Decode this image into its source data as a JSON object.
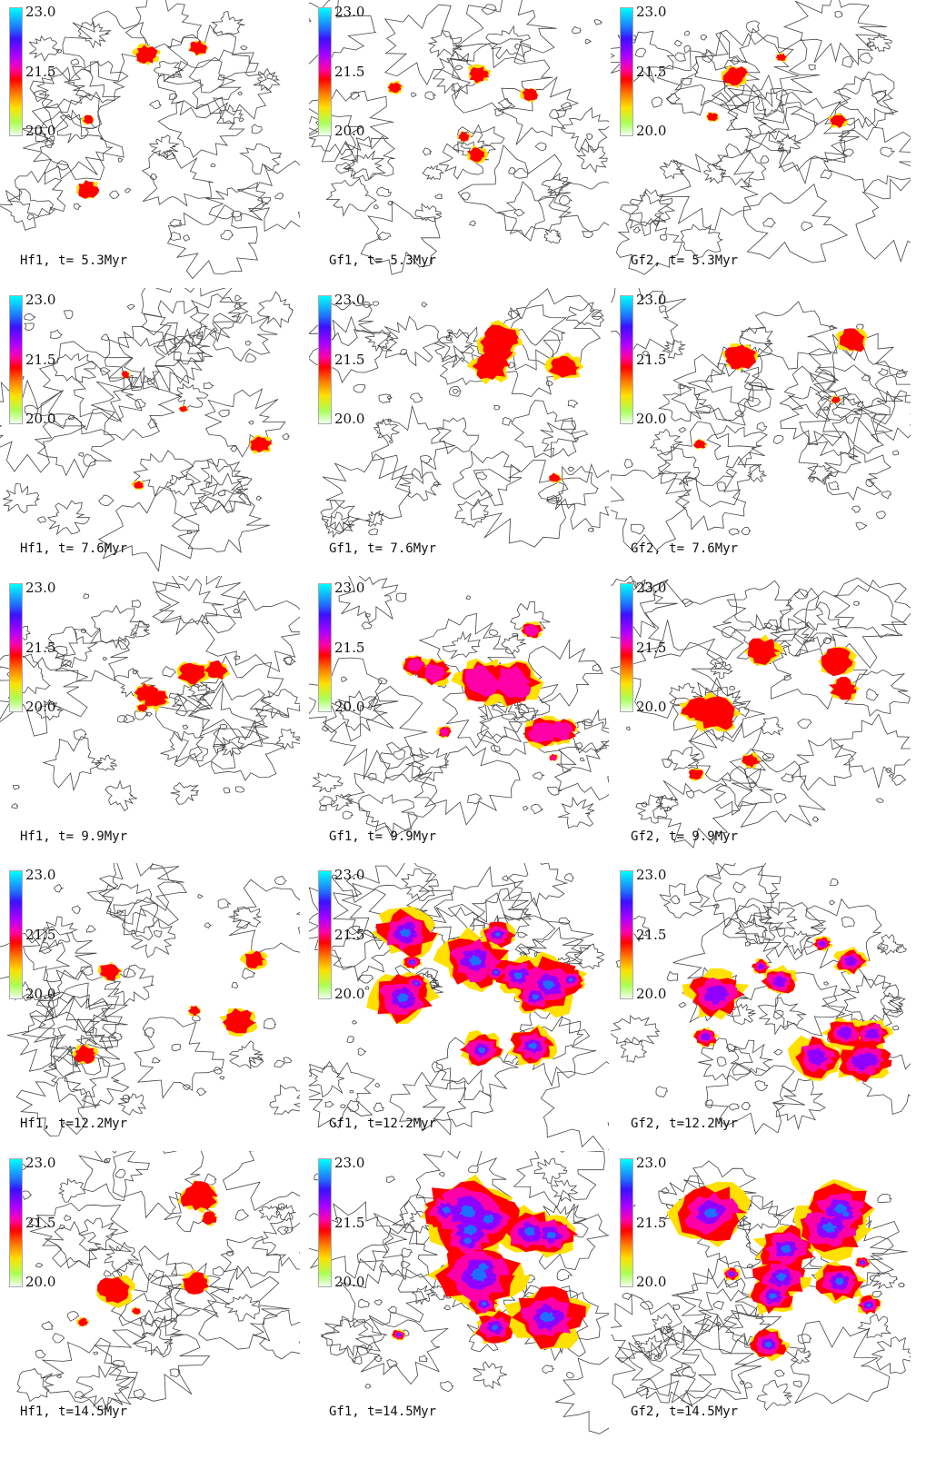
{
  "colorbar": {
    "max": "23.0",
    "mid": "21.5",
    "min": "20.0",
    "colors": [
      "#00ffff",
      "#1f6fff",
      "#3a10ff",
      "#b000ff",
      "#ff00a8",
      "#ff0000",
      "#ff7a00",
      "#ffe000",
      "#aaff55",
      "#f0fff0"
    ]
  },
  "panels": [
    {
      "caption": "Hf1, t= 5.3Myr",
      "density": 0.05
    },
    {
      "caption": "Gf1, t= 5.3Myr",
      "density": 0.13
    },
    {
      "caption": "Gf2, t= 5.3Myr",
      "density": 0.07
    },
    {
      "caption": "Hf1, t= 7.6Myr",
      "density": 0.1
    },
    {
      "caption": "Gf1, t= 7.6Myr",
      "density": 0.22
    },
    {
      "caption": "Gf2, t= 7.6Myr",
      "density": 0.15
    },
    {
      "caption": "Hf1, t= 9.9Myr",
      "density": 0.12
    },
    {
      "caption": "Gf1, t= 9.9Myr",
      "density": 0.45
    },
    {
      "caption": "Gf2, t= 9.9Myr",
      "density": 0.3
    },
    {
      "caption": "Hf1, t=12.2Myr",
      "density": 0.16
    },
    {
      "caption": "Gf1, t=12.2Myr",
      "density": 0.7
    },
    {
      "caption": "Gf2, t=12.2Myr",
      "density": 0.55
    },
    {
      "caption": "Hf1, t=14.5Myr",
      "density": 0.2
    },
    {
      "caption": "Gf1, t=14.5Myr",
      "density": 0.8
    },
    {
      "caption": "Gf2, t=14.5Myr",
      "density": 0.65
    }
  ]
}
